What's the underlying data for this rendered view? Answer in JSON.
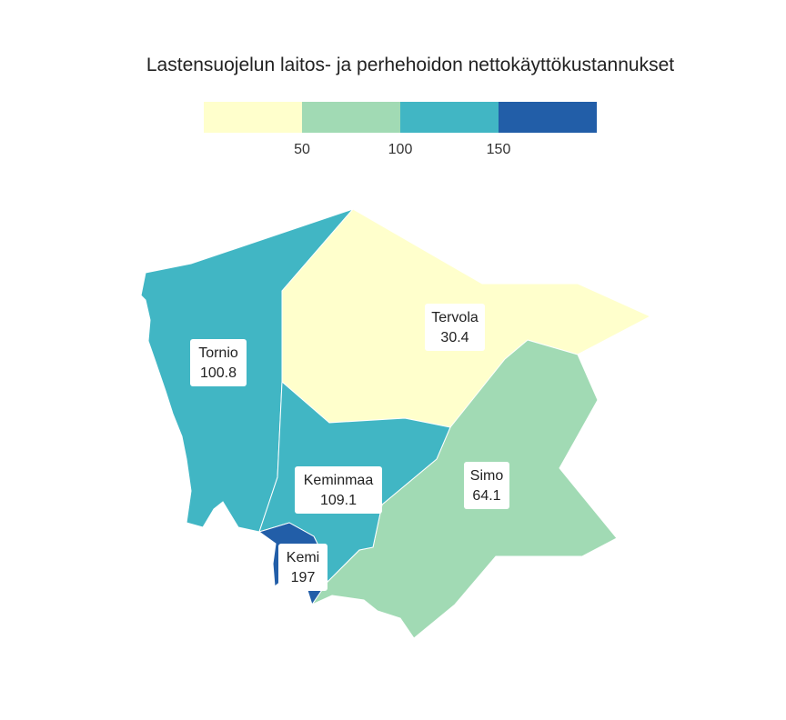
{
  "title": "Lastensuojelun laitos- ja perhehoidon nettokäyttökustannukset",
  "legend": {
    "bins": [
      {
        "color": "#ffffcc"
      },
      {
        "color": "#a1dab4"
      },
      {
        "color": "#41b6c4"
      },
      {
        "color": "#225ea8"
      }
    ],
    "ticks": [
      "50",
      "100",
      "150"
    ]
  },
  "regions": [
    {
      "name": "Tornio",
      "value": "100.8",
      "color": "#41b6c4"
    },
    {
      "name": "Tervola",
      "value": "30.4",
      "color": "#ffffcc"
    },
    {
      "name": "Simo",
      "value": "64.1",
      "color": "#a1dab4"
    },
    {
      "name": "Keminmaa",
      "value": "109.1",
      "color": "#41b6c4"
    },
    {
      "name": "Kemi",
      "value": "197",
      "color": "#225ea8"
    }
  ]
}
